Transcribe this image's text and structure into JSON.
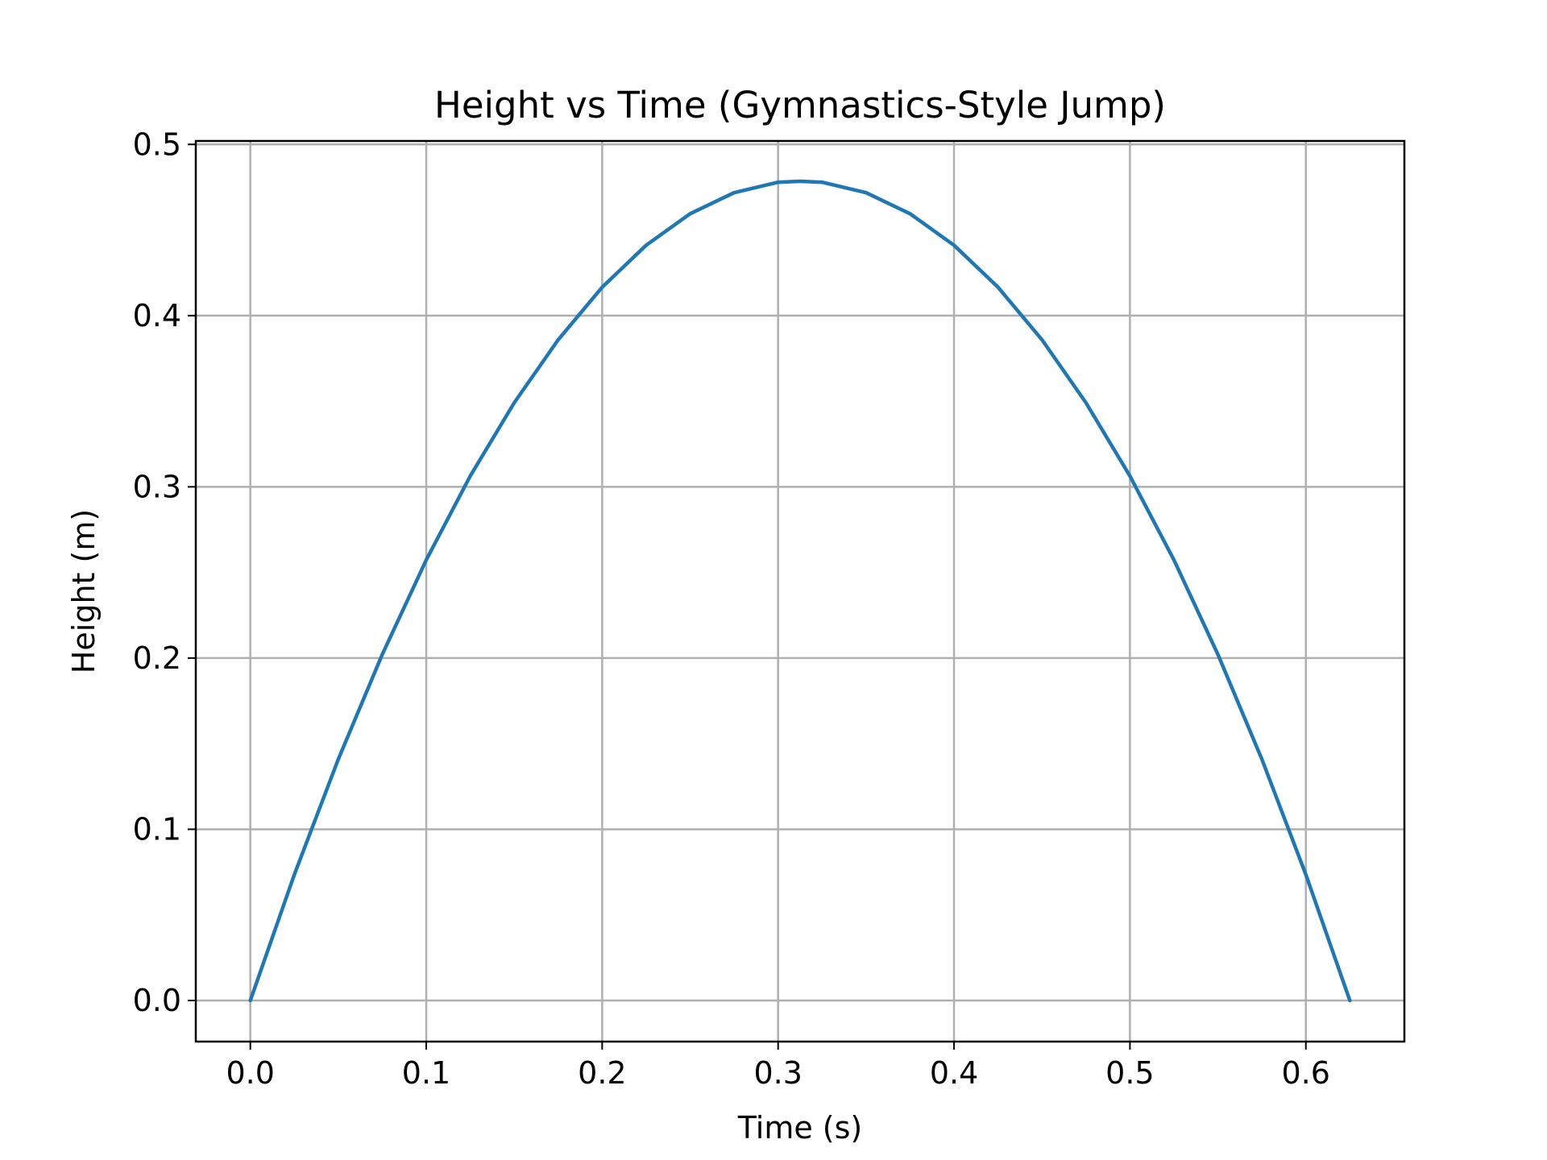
{
  "chart_data": {
    "type": "line",
    "title": "Height vs Time (Gymnastics-Style Jump)",
    "xlabel": "Time (s)",
    "ylabel": "Height (m)",
    "xlim": [
      -0.031,
      0.656
    ],
    "ylim": [
      -0.024,
      0.502
    ],
    "xticks": [
      0.0,
      0.1,
      0.2,
      0.3,
      0.4,
      0.5,
      0.6
    ],
    "xtick_labels": [
      "0.0",
      "0.1",
      "0.2",
      "0.3",
      "0.4",
      "0.5",
      "0.6"
    ],
    "yticks": [
      0.0,
      0.1,
      0.2,
      0.3,
      0.4,
      0.5
    ],
    "ytick_labels": [
      "0.0",
      "0.1",
      "0.2",
      "0.3",
      "0.4",
      "0.5"
    ],
    "grid": true,
    "legend": "none",
    "colors": {
      "series": "#1f77b4",
      "grid": "#b0b0b0",
      "axes": "#000000"
    },
    "series": [
      {
        "x": [
          0.0,
          0.025,
          0.05,
          0.075,
          0.1,
          0.125,
          0.15,
          0.175,
          0.2,
          0.225,
          0.25,
          0.275,
          0.3,
          0.3125,
          0.325,
          0.35,
          0.375,
          0.4,
          0.425,
          0.45,
          0.475,
          0.5,
          0.525,
          0.55,
          0.575,
          0.6,
          0.625
        ],
        "y": [
          0.0,
          0.0735,
          0.1409,
          0.2021,
          0.2573,
          0.3063,
          0.3491,
          0.3859,
          0.4166,
          0.4411,
          0.4595,
          0.4718,
          0.4779,
          0.4785,
          0.4779,
          0.4718,
          0.4595,
          0.4411,
          0.4166,
          0.3859,
          0.3491,
          0.3063,
          0.2573,
          0.2021,
          0.1409,
          0.0735,
          0.0
        ]
      }
    ]
  }
}
